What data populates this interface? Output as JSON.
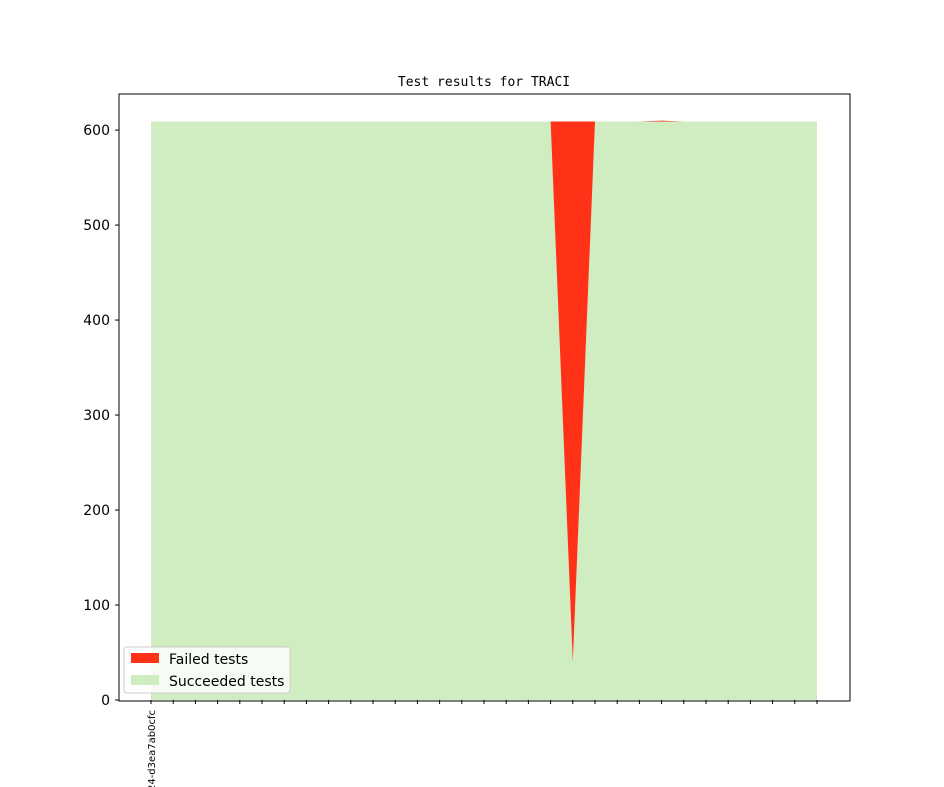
{
  "chart_data": {
    "type": "area",
    "title": "Test results for TRACI",
    "xlabel": "",
    "ylabel": "",
    "x_tick_labels": [
      "24-d3ea7ab0cfc"
    ],
    "ylim": [
      0,
      638
    ],
    "y_ticks": [
      0,
      100,
      200,
      300,
      400,
      500,
      600
    ],
    "stacked": true,
    "legend_position": "lower-left",
    "grid": false,
    "series": [
      {
        "name": "Succeeded tests",
        "color": "#cfedc0",
        "values": [
          609,
          609,
          609,
          609,
          609,
          609,
          609,
          609,
          609,
          609,
          609,
          609,
          609,
          609,
          609,
          609,
          609,
          609,
          609,
          40,
          609,
          609,
          609,
          609,
          609,
          609,
          609,
          609,
          609,
          609,
          609
        ]
      },
      {
        "name": "Failed tests",
        "color": "#ff3218",
        "values": [
          0,
          0,
          0,
          0,
          0,
          0,
          0,
          0,
          0,
          0,
          0,
          0,
          0,
          0,
          0,
          0,
          0,
          0,
          0,
          569,
          0,
          0,
          0,
          1,
          0,
          0,
          0,
          0,
          0,
          0,
          0
        ]
      }
    ]
  }
}
